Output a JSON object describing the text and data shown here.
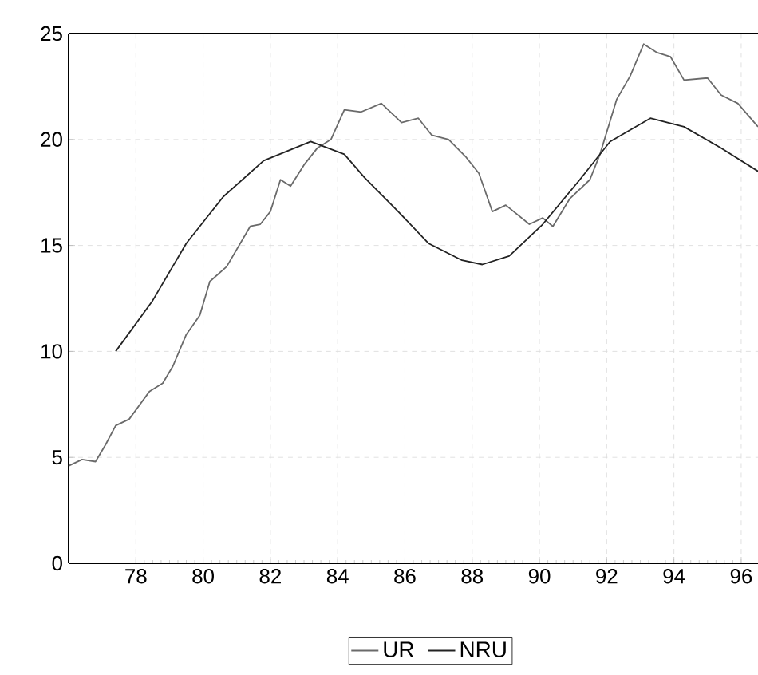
{
  "chart_data": {
    "type": "line",
    "xlim": [
      1976,
      1996.5
    ],
    "ylim": [
      0,
      25
    ],
    "xticks": [
      {
        "value": 1978,
        "label": "78"
      },
      {
        "value": 1980,
        "label": "80"
      },
      {
        "value": 1982,
        "label": "82"
      },
      {
        "value": 1984,
        "label": "84"
      },
      {
        "value": 1986,
        "label": "86"
      },
      {
        "value": 1988,
        "label": "88"
      },
      {
        "value": 1990,
        "label": "90"
      },
      {
        "value": 1992,
        "label": "92"
      },
      {
        "value": 1994,
        "label": "94"
      },
      {
        "value": 1996,
        "label": "96"
      }
    ],
    "yticks": [
      0,
      5,
      10,
      15,
      20,
      25
    ],
    "grid": true,
    "legend": "bottom",
    "marker": "none",
    "line_style": "solid",
    "series": [
      {
        "name": "UR",
        "color": "#6a6a6a",
        "x": [
          1976.0,
          1976.4,
          1976.8,
          1977.1,
          1977.4,
          1977.8,
          1978.4,
          1978.8,
          1979.1,
          1979.5,
          1979.9,
          1980.2,
          1980.7,
          1981.4,
          1981.7,
          1982.0,
          1982.3,
          1982.6,
          1983.0,
          1983.4,
          1983.8,
          1984.2,
          1984.7,
          1985.3,
          1985.9,
          1986.4,
          1986.8,
          1987.3,
          1987.8,
          1988.2,
          1988.6,
          1989.0,
          1989.7,
          1990.1,
          1990.4,
          1990.9,
          1991.5,
          1991.8,
          1992.3,
          1992.7,
          1993.1,
          1993.5,
          1993.9,
          1994.3,
          1995.0,
          1995.4,
          1995.9,
          1996.5
        ],
        "values": [
          4.6,
          4.9,
          4.8,
          5.6,
          6.5,
          6.8,
          8.1,
          8.5,
          9.3,
          10.8,
          11.7,
          13.3,
          14.0,
          15.9,
          16.0,
          16.6,
          18.1,
          17.8,
          18.8,
          19.6,
          20.0,
          21.4,
          21.3,
          21.7,
          20.8,
          21.0,
          20.2,
          20.0,
          19.2,
          18.4,
          16.6,
          16.9,
          16.0,
          16.3,
          15.9,
          17.2,
          18.1,
          19.3,
          21.9,
          23.0,
          24.5,
          24.1,
          23.9,
          22.8,
          22.9,
          22.1,
          21.7,
          20.6
        ]
      },
      {
        "name": "NRU",
        "color": "#222222",
        "x": [
          1977.4,
          1978.5,
          1979.5,
          1980.6,
          1981.8,
          1983.2,
          1984.2,
          1984.8,
          1985.8,
          1986.7,
          1987.7,
          1988.3,
          1989.1,
          1990.1,
          1991.2,
          1992.1,
          1993.3,
          1994.3,
          1995.4,
          1996.5
        ],
        "values": [
          10.0,
          12.4,
          15.1,
          17.3,
          19.0,
          19.9,
          19.3,
          18.2,
          16.6,
          15.1,
          14.3,
          14.1,
          14.5,
          16.0,
          18.1,
          19.9,
          21.0,
          20.6,
          19.6,
          18.5
        ]
      }
    ]
  }
}
